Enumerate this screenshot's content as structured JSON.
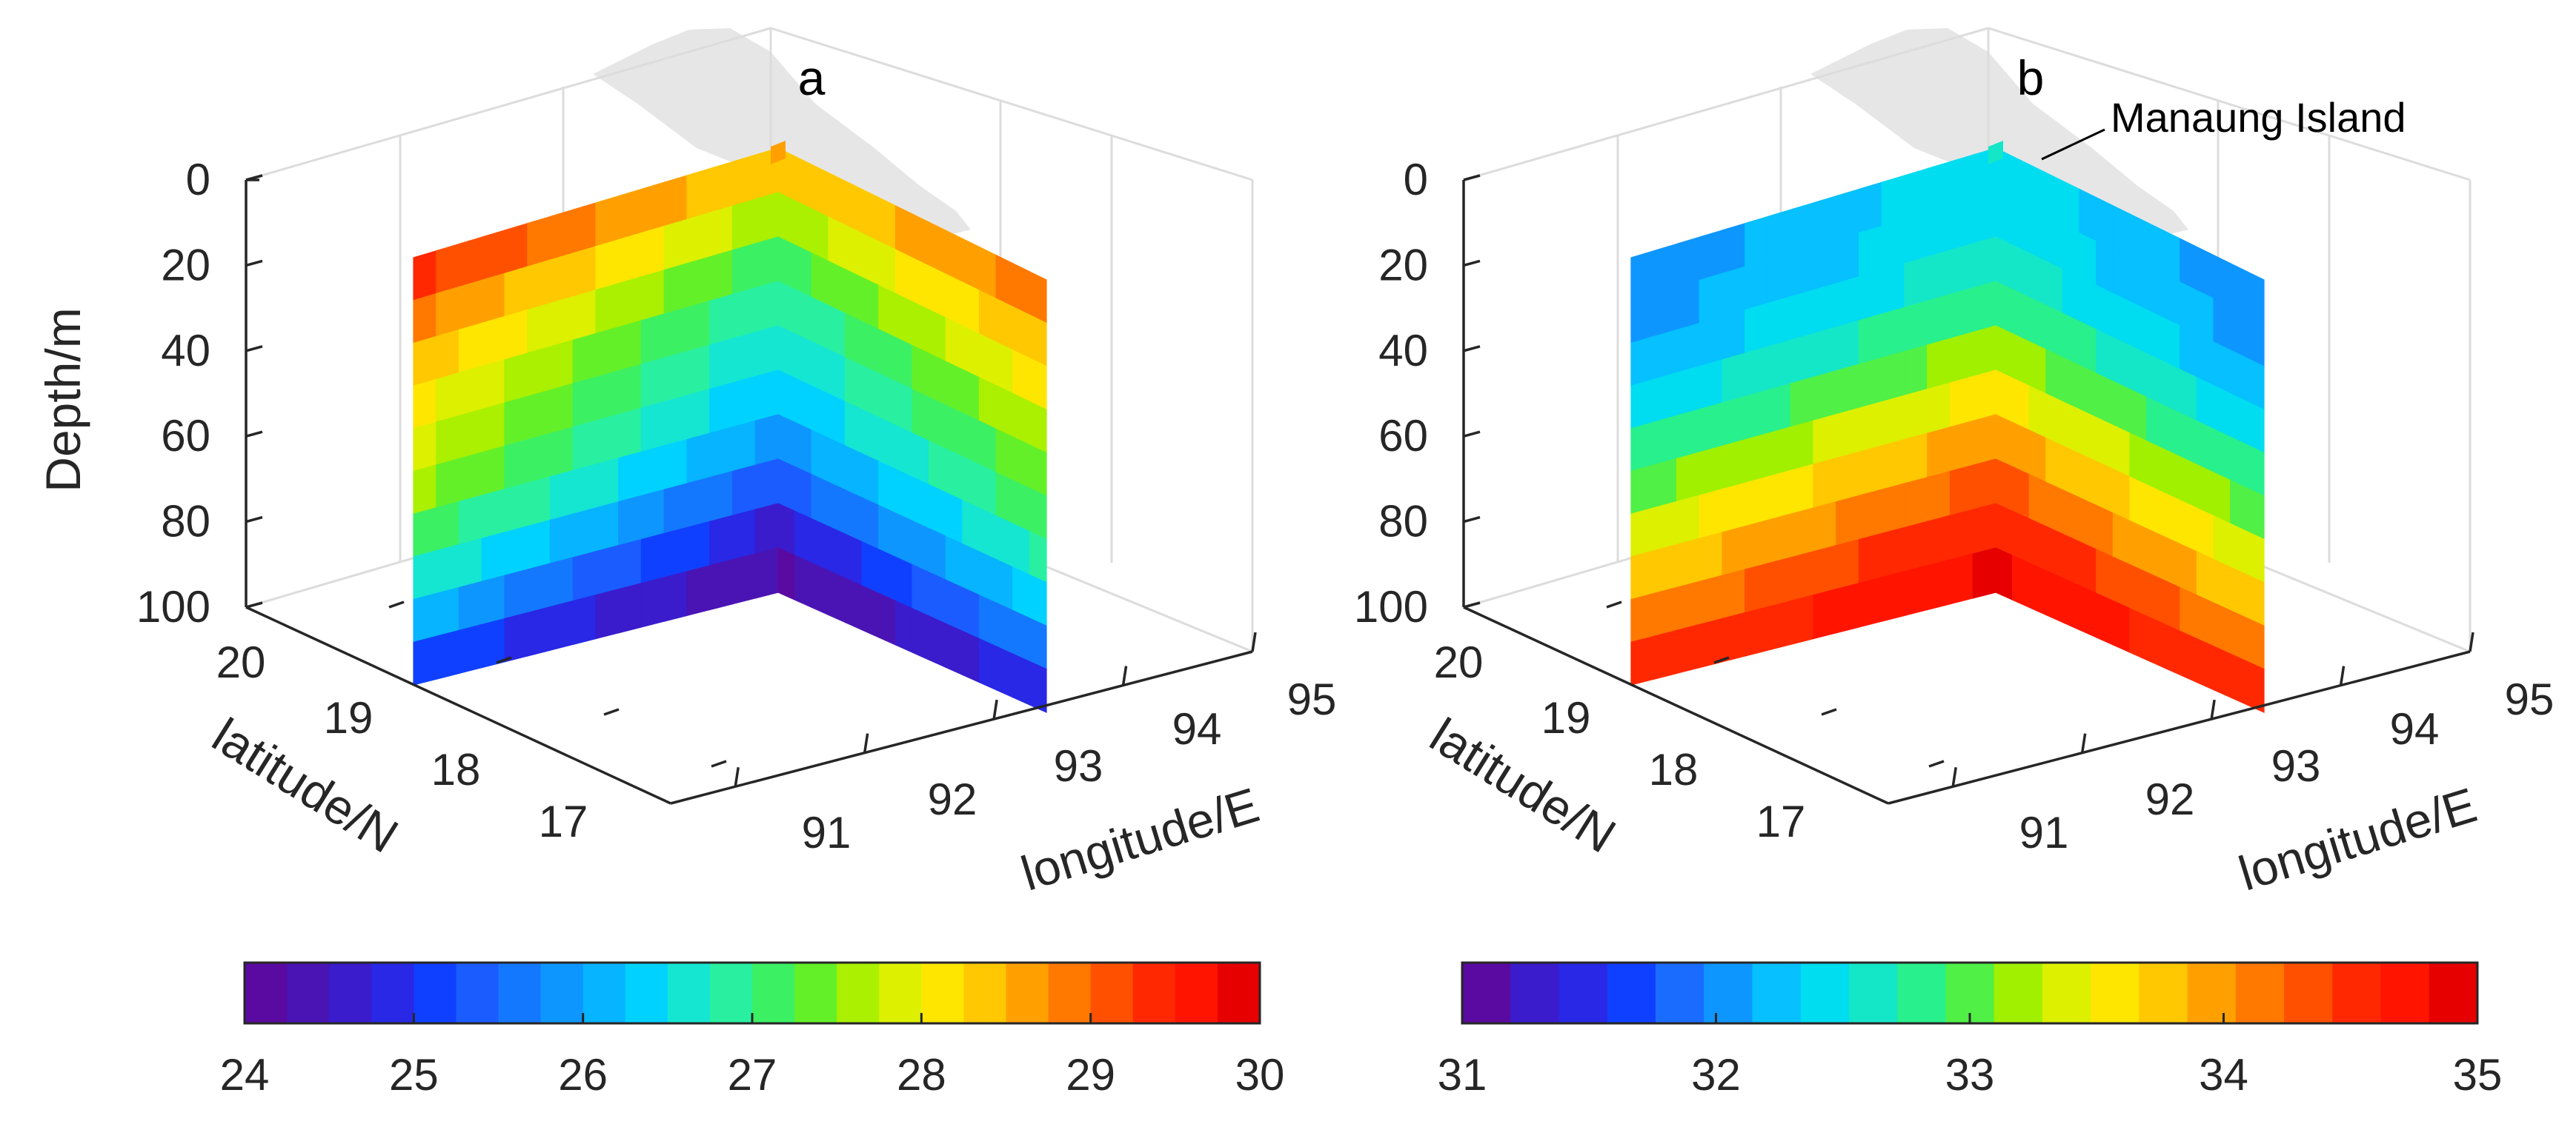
{
  "chart_data": [
    {
      "type": "3d-section-contour",
      "panel": "a",
      "title": "a",
      "zlabel": "Depth/m",
      "ylabel": "latitude/N",
      "xlabel": "longitude/E",
      "depth_ticks": [
        0,
        20,
        40,
        60,
        80,
        100
      ],
      "lat_ticks": [
        20,
        19,
        18,
        17
      ],
      "lon_ticks": [
        91,
        92,
        93,
        94,
        95
      ],
      "depth_range": [
        0,
        100
      ],
      "lat_range": [
        17,
        20
      ],
      "lon_range": [
        90.5,
        95
      ],
      "colorbar": {
        "ticks": [
          24,
          25,
          26,
          27,
          28,
          29,
          30
        ],
        "range": [
          24,
          30
        ],
        "colors": [
          "#5a0aa0",
          "#4a14b4",
          "#3a1ccc",
          "#2828e6",
          "#1040ff",
          "#1a5cff",
          "#1478ff",
          "#0e96ff",
          "#06b4ff",
          "#00d2ff",
          "#14e6d2",
          "#28f0a0",
          "#3cf064",
          "#64f028",
          "#aaf000",
          "#dcf000",
          "#ffe600",
          "#ffc800",
          "#ffa000",
          "#ff7800",
          "#ff5000",
          "#ff2800",
          "#ff1400",
          "#e60000"
        ]
      },
      "surface_rows": [
        {
          "depth": 0,
          "left": 29.5,
          "corner": 28.6,
          "right": 29.0
        },
        {
          "depth": 10,
          "left": 29.1,
          "corner": 27.9,
          "right": 28.7
        },
        {
          "depth": 20,
          "left": 28.6,
          "corner": 27.3,
          "right": 28.3
        },
        {
          "depth": 30,
          "left": 28.2,
          "corner": 26.9,
          "right": 27.9
        },
        {
          "depth": 40,
          "left": 28.0,
          "corner": 26.6,
          "right": 27.6
        },
        {
          "depth": 50,
          "left": 27.7,
          "corner": 26.4,
          "right": 27.3
        },
        {
          "depth": 60,
          "left": 27.4,
          "corner": 26.1,
          "right": 27.0
        },
        {
          "depth": 70,
          "left": 27.0,
          "corner": 25.7,
          "right": 26.6
        },
        {
          "depth": 80,
          "left": 26.5,
          "corner": 25.0,
          "right": 26.1
        },
        {
          "depth": 90,
          "left": 25.8,
          "corner": 24.4,
          "right": 25.4
        },
        {
          "depth": 100,
          "left": 24.7,
          "corner": 24.05,
          "right": 24.4
        }
      ]
    },
    {
      "type": "3d-section-contour",
      "panel": "b",
      "title": "b",
      "annotation": "Manaung Island",
      "ylabel": "latitude/N",
      "xlabel": "longitude/E",
      "depth_ticks": [
        0,
        20,
        40,
        60,
        80,
        100
      ],
      "lat_ticks": [
        20,
        19,
        18,
        17
      ],
      "lon_ticks": [
        91,
        92,
        93,
        94,
        95
      ],
      "depth_range": [
        0,
        100
      ],
      "lat_range": [
        17,
        20
      ],
      "lon_range": [
        90.5,
        95
      ],
      "colorbar": {
        "ticks": [
          31,
          32,
          33,
          34,
          35
        ],
        "range": [
          31,
          35
        ],
        "colors": [
          "#5a0aa0",
          "#3a1ccc",
          "#2828e6",
          "#1040ff",
          "#1a6cff",
          "#0e96ff",
          "#06c0ff",
          "#00dcf0",
          "#14e6c8",
          "#28f08c",
          "#50f046",
          "#a0f000",
          "#dcf000",
          "#ffe600",
          "#ffc800",
          "#ffa000",
          "#ff7800",
          "#ff5000",
          "#ff2800",
          "#ff1400",
          "#e60000"
        ]
      },
      "surface_rows": [
        {
          "depth": 0,
          "left": 31.9,
          "corner": 32.55,
          "right": 31.9
        },
        {
          "depth": 10,
          "left": 32.0,
          "corner": 32.5,
          "right": 32.0
        },
        {
          "depth": 20,
          "left": 32.1,
          "corner": 32.55,
          "right": 32.1
        },
        {
          "depth": 30,
          "left": 32.3,
          "corner": 32.75,
          "right": 32.3
        },
        {
          "depth": 40,
          "left": 32.55,
          "corner": 33.0,
          "right": 32.55
        },
        {
          "depth": 50,
          "left": 32.85,
          "corner": 33.35,
          "right": 32.85
        },
        {
          "depth": 60,
          "left": 33.2,
          "corner": 33.75,
          "right": 33.2
        },
        {
          "depth": 70,
          "left": 33.55,
          "corner": 34.15,
          "right": 33.55
        },
        {
          "depth": 80,
          "left": 33.9,
          "corner": 34.5,
          "right": 33.9
        },
        {
          "depth": 90,
          "left": 34.25,
          "corner": 34.75,
          "right": 34.25
        },
        {
          "depth": 100,
          "left": 34.6,
          "corner": 34.9,
          "right": 34.6
        }
      ]
    }
  ]
}
